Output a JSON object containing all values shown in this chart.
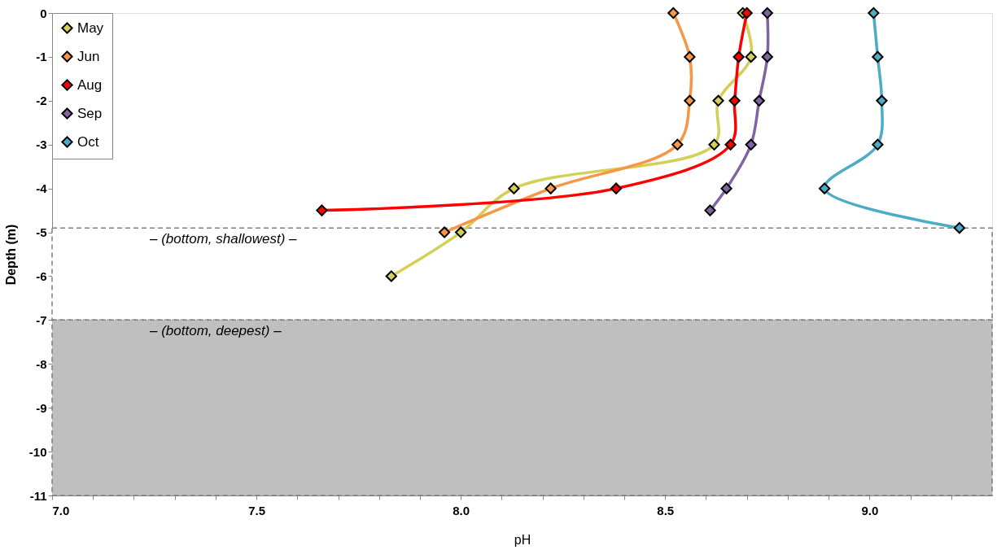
{
  "chart_data": {
    "type": "line",
    "xlabel": "pH",
    "ylabel": "Depth (m)",
    "xlim": [
      7.0,
      9.3
    ],
    "ylim": [
      -11,
      0
    ],
    "xticks": [
      {
        "value": 7.0,
        "label": "7.0"
      },
      {
        "value": 7.1,
        "label": null
      },
      {
        "value": 7.2,
        "label": null
      },
      {
        "value": 7.3,
        "label": null
      },
      {
        "value": 7.4,
        "label": null
      },
      {
        "value": 7.5,
        "label": "7.5"
      },
      {
        "value": 7.6,
        "label": null
      },
      {
        "value": 7.7,
        "label": null
      },
      {
        "value": 7.8,
        "label": null
      },
      {
        "value": 7.9,
        "label": null
      },
      {
        "value": 8.0,
        "label": "8.0"
      },
      {
        "value": 8.1,
        "label": null
      },
      {
        "value": 8.2,
        "label": null
      },
      {
        "value": 8.3,
        "label": null
      },
      {
        "value": 8.4,
        "label": null
      },
      {
        "value": 8.5,
        "label": "8.5"
      },
      {
        "value": 8.6,
        "label": null
      },
      {
        "value": 8.7,
        "label": null
      },
      {
        "value": 8.8,
        "label": null
      },
      {
        "value": 8.9,
        "label": null
      },
      {
        "value": 9.0,
        "label": "9.0"
      },
      {
        "value": 9.1,
        "label": null
      },
      {
        "value": 9.2,
        "label": null
      }
    ],
    "yticks": [
      0,
      -1,
      -2,
      -3,
      -4,
      -5,
      -6,
      -7,
      -8,
      -9,
      -10,
      -11
    ],
    "marker": "diamond",
    "line_style": "solid",
    "grid": false,
    "legend": "top left",
    "series": [
      {
        "name": "May",
        "color": "#d4cf55",
        "x": [
          8.69,
          8.71,
          8.63,
          8.62,
          8.13,
          8.0,
          7.83
        ],
        "values": [
          0,
          -1,
          -2,
          -3,
          -4,
          -5,
          -6
        ]
      },
      {
        "name": "Jun",
        "color": "#f79646",
        "x": [
          8.52,
          8.56,
          8.56,
          8.53,
          8.22,
          7.96
        ],
        "values": [
          0,
          -1,
          -2,
          -3,
          -4,
          -5
        ]
      },
      {
        "name": "Aug",
        "color": "#ff0000",
        "x": [
          8.7,
          8.68,
          8.67,
          8.66,
          8.38,
          7.66
        ],
        "values": [
          0,
          -1,
          -2,
          -3,
          -4,
          -4.5
        ]
      },
      {
        "name": "Sep",
        "color": "#8064a2",
        "x": [
          8.75,
          8.75,
          8.73,
          8.71,
          8.65,
          8.61
        ],
        "values": [
          0,
          -1,
          -2,
          -3,
          -4,
          -4.5
        ]
      },
      {
        "name": "Oct",
        "color": "#4bacc6",
        "x": [
          9.01,
          9.02,
          9.03,
          9.02,
          8.89,
          9.22
        ],
        "values": [
          0,
          -1,
          -2,
          -3,
          -4,
          -4.9
        ]
      }
    ],
    "bands": [
      {
        "axis": "y",
        "from": -4.9,
        "to": -7,
        "label": "– (bottom, shallowest) –",
        "color": "#ffffff"
      },
      {
        "axis": "y",
        "from": -7,
        "to": -11,
        "label": "– (bottom, deepest) –",
        "color": "#bfbfbf"
      }
    ]
  }
}
